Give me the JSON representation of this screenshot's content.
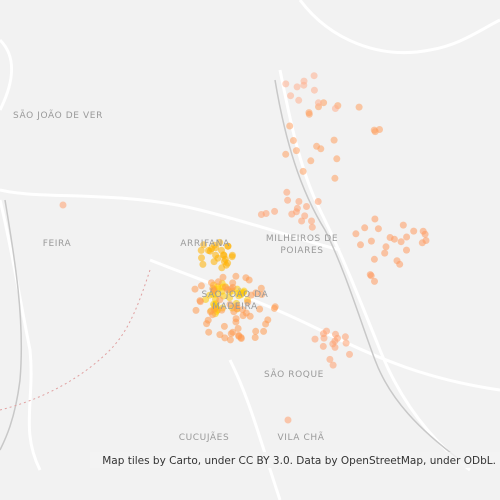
{
  "map": {
    "labels": [
      {
        "lines": [
          "SÃO JOÃO DE VER"
        ]
      },
      {
        "lines": [
          "FEIRA"
        ]
      },
      {
        "lines": [
          "ARRIFANA"
        ]
      },
      {
        "lines": [
          "MILHEIROS DE",
          "POIARES"
        ]
      },
      {
        "lines": [
          "SÃO JOÃO DA",
          "MADEIRA"
        ]
      },
      {
        "lines": [
          "SÃO ROQUE"
        ]
      },
      {
        "lines": [
          "CUCUJÃES"
        ]
      },
      {
        "lines": [
          "VILA CHÃ"
        ]
      }
    ],
    "attribution": "Map tiles by Carto, under CC BY 3.0. Data by OpenStreetMap, under ODbL."
  }
}
